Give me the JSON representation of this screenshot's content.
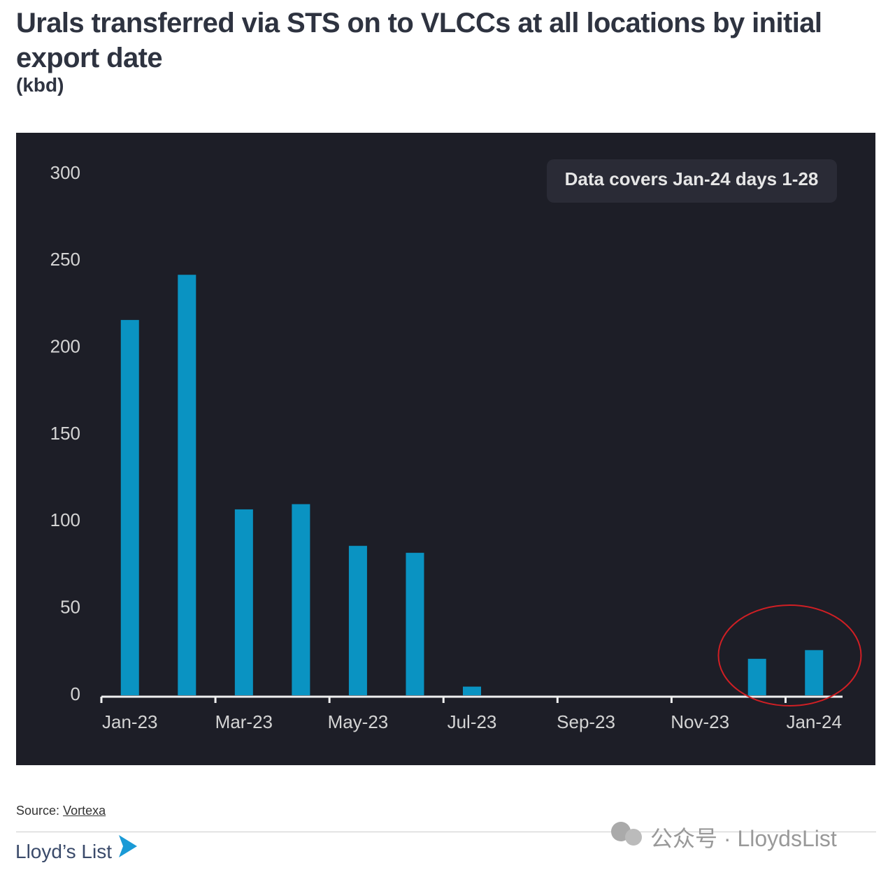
{
  "chart_data": {
    "type": "bar",
    "title": "Urals transferred via STS on to VLCCs at all locations by initial export date",
    "subtitle": "(kbd)",
    "annotation": "Data covers Jan-24 days 1-28",
    "categories": [
      "Jan-23",
      null,
      "Mar-23",
      null,
      "May-23",
      null,
      "Jul-23",
      null,
      "Sep-23",
      null,
      "Nov-23",
      null,
      "Jan-24"
    ],
    "values": [
      216,
      242,
      107,
      110,
      86,
      82,
      5,
      0,
      0,
      0,
      0,
      21,
      26
    ],
    "color": "#0a93c2",
    "ylim": [
      0,
      300
    ],
    "yticks": [
      0,
      50,
      100,
      150,
      200,
      250,
      300
    ],
    "grid": false
  },
  "source": {
    "label": "Source:",
    "name": "Vortexa"
  },
  "brand": "Lloyd’s List",
  "watermark": "公众号 · LloydsList"
}
